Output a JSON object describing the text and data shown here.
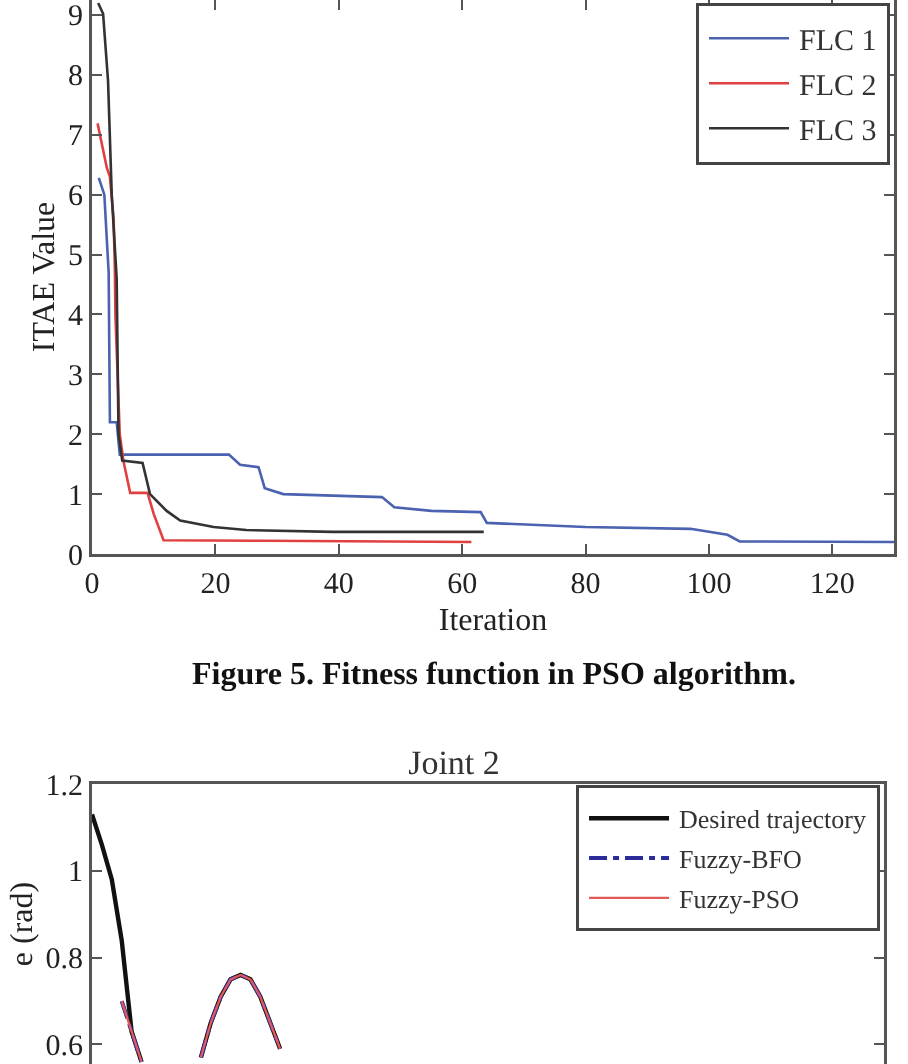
{
  "chart_data": [
    {
      "type": "line",
      "xlabel": "Iteration",
      "ylabel": "ITAE Value",
      "annotations": [
        "Figure 5. Fitness function in PSO algorithm."
      ],
      "xlim": [
        0,
        130
      ],
      "xticks": [
        0,
        20,
        40,
        60,
        80,
        100,
        120
      ],
      "ylim": [
        0,
        9.25
      ],
      "yticks": [
        0,
        1,
        2,
        3,
        4,
        5,
        6,
        7,
        8,
        9
      ],
      "legend": "top right",
      "grid": false,
      "line_style": "solid",
      "series": [
        {
          "name": "FLC 1",
          "color": "#4a62b0",
          "x": [
            1.1,
            2,
            2.7,
            2.9,
            4,
            4.5,
            22.2,
            24,
            27,
            28,
            31,
            47,
            49,
            55,
            63,
            64,
            80,
            97,
            103,
            105,
            130
          ],
          "values": [
            6.28,
            6.0,
            4.7,
            2.2,
            2.2,
            1.66,
            1.66,
            1.49,
            1.45,
            1.1,
            1.0,
            0.95,
            0.78,
            0.72,
            0.7,
            0.52,
            0.45,
            0.42,
            0.32,
            0.21,
            0.2
          ]
        },
        {
          "name": "FLC 2",
          "color": "#e04040",
          "x": [
            0.9,
            2.4,
            2.9,
            3.5,
            3.7,
            3.8,
            4.5,
            5.1,
            6.2,
            9,
            10,
            11.6,
            28,
            61.5
          ],
          "values": [
            7.19,
            6.45,
            6.3,
            5.6,
            4.8,
            3.97,
            2.0,
            1.55,
            1.02,
            1.02,
            0.67,
            0.23,
            0.22,
            0.2
          ]
        },
        {
          "name": "FLC 3",
          "color": "#333333",
          "x": [
            1,
            1.8,
            2.6,
            3.2,
            4,
            4.3,
            4.9,
            8.2,
            9.4,
            12.1,
            14.3,
            19.7,
            25,
            39,
            63.5
          ],
          "values": [
            9.2,
            9.02,
            7.9,
            6.0,
            4.6,
            2.0,
            1.56,
            1.52,
            1.0,
            0.72,
            0.56,
            0.45,
            0.4,
            0.37,
            0.37
          ]
        }
      ]
    },
    {
      "type": "line",
      "title": "Joint 2",
      "ylabel": "e (rad)",
      "categories": [
        null,
        null,
        null,
        null,
        null,
        null,
        null,
        null,
        null,
        null,
        null,
        null,
        null,
        null,
        null,
        null,
        null,
        null,
        null,
        null,
        null,
        null,
        null,
        null,
        null,
        null,
        null,
        null,
        null,
        null,
        null,
        null,
        null,
        null,
        null,
        null,
        null,
        null,
        null,
        null,
        null,
        null,
        null,
        null,
        null,
        null,
        null,
        null,
        null,
        null,
        null,
        null,
        null,
        null,
        null,
        null,
        null,
        null,
        null,
        null,
        null,
        null,
        null,
        null,
        null,
        null,
        null,
        null,
        null,
        null,
        null,
        null,
        null,
        null,
        null,
        null,
        null,
        null,
        null,
        null,
        null
      ],
      "ylim": [
        0.555,
        1.2
      ],
      "yticks": [
        0.6,
        0.8,
        1,
        1.2
      ],
      "tick_labels": "y",
      "legend": "top right",
      "grid": false,
      "series": [
        {
          "name": "Desired trajectory",
          "color": "#111111",
          "line_style": "solid",
          "values": [
            1.13,
            1.06,
            0.98,
            0.84,
            0.63,
            0.56,
            null,
            null,
            null,
            null,
            null,
            0.57,
            0.65,
            0.71,
            0.75,
            0.76,
            0.75,
            0.71,
            0.65,
            0.59,
            null,
            null,
            null,
            null,
            null,
            null,
            null,
            null,
            null,
            null,
            null,
            null,
            null,
            null,
            null,
            null,
            null,
            null,
            null,
            null,
            null,
            null,
            null,
            null,
            null,
            null,
            null,
            null,
            null,
            null,
            null,
            null,
            null,
            null,
            null,
            null,
            null,
            null,
            null,
            null,
            null,
            null,
            null,
            null,
            null,
            null,
            null,
            null,
            null,
            null,
            null,
            null,
            null,
            null,
            null,
            null,
            null,
            null,
            null,
            null,
            null
          ]
        },
        {
          "name": "Fuzzy-BFO",
          "color": "#2b2b9a",
          "line_style": "dashed",
          "values": [
            null,
            null,
            null,
            0.7,
            0.63,
            0.56,
            null,
            null,
            null,
            null,
            null,
            0.57,
            0.65,
            0.71,
            0.75,
            0.76,
            0.75,
            0.71,
            0.65,
            0.59,
            null,
            null,
            null,
            null,
            null,
            null,
            null,
            null,
            null,
            null,
            null,
            null,
            null,
            null,
            null,
            null,
            null,
            null,
            null,
            null,
            null,
            null,
            null,
            null,
            null,
            null,
            null,
            null,
            null,
            null,
            null,
            null,
            null,
            null,
            null,
            null,
            null,
            null,
            null,
            null,
            null,
            null,
            null,
            null,
            null,
            null,
            null,
            null,
            null,
            null,
            null,
            null,
            null,
            null,
            null,
            null,
            null,
            null,
            null,
            null,
            null
          ]
        },
        {
          "name": "Fuzzy-PSO",
          "color": "#e05a5a",
          "line_style": "solid",
          "values": [
            null,
            null,
            null,
            0.7,
            0.63,
            0.56,
            null,
            null,
            null,
            null,
            null,
            0.57,
            0.65,
            0.71,
            0.75,
            0.76,
            0.75,
            0.71,
            0.65,
            0.59,
            null,
            null,
            null,
            null,
            null,
            null,
            null,
            null,
            null,
            null,
            null,
            null,
            null,
            null,
            null,
            null,
            null,
            null,
            null,
            null,
            null,
            null,
            null,
            null,
            null,
            null,
            null,
            null,
            null,
            null,
            null,
            null,
            null,
            null,
            null,
            null,
            null,
            null,
            null,
            null,
            null,
            null,
            null,
            null,
            null,
            null,
            null,
            null,
            null,
            null,
            null,
            null,
            null,
            null,
            null,
            null,
            null,
            null,
            null,
            null,
            null
          ]
        }
      ]
    }
  ]
}
